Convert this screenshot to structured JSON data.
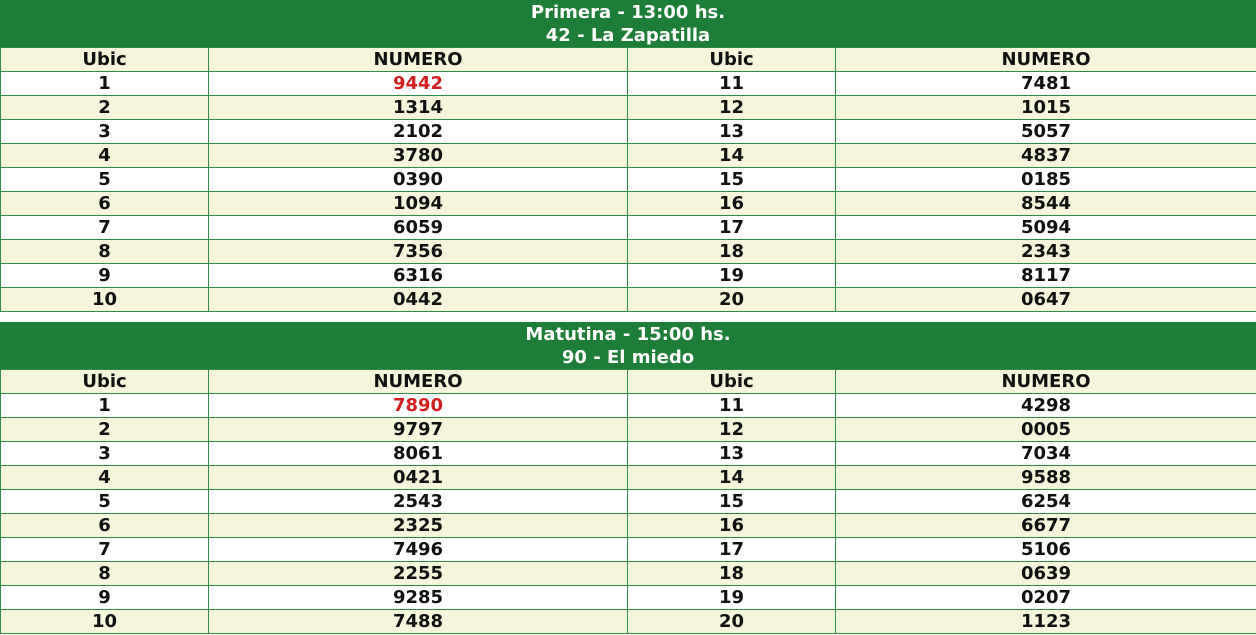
{
  "colors": {
    "header_bg": "#1e7d37",
    "row_alt_bg": "#f5f5dc",
    "first_prize": "#d11e1e"
  },
  "draws": [
    {
      "title": "Primera - 13:00 hs.",
      "subtitle": "42 - La Zapatilla",
      "col_ubic": "Ubic",
      "col_numero": "NUMERO",
      "rows": [
        {
          "u1": "1",
          "n1": "9442",
          "u2": "11",
          "n2": "7481"
        },
        {
          "u1": "2",
          "n1": "1314",
          "u2": "12",
          "n2": "1015"
        },
        {
          "u1": "3",
          "n1": "2102",
          "u2": "13",
          "n2": "5057"
        },
        {
          "u1": "4",
          "n1": "3780",
          "u2": "14",
          "n2": "4837"
        },
        {
          "u1": "5",
          "n1": "0390",
          "u2": "15",
          "n2": "0185"
        },
        {
          "u1": "6",
          "n1": "1094",
          "u2": "16",
          "n2": "8544"
        },
        {
          "u1": "7",
          "n1": "6059",
          "u2": "17",
          "n2": "5094"
        },
        {
          "u1": "8",
          "n1": "7356",
          "u2": "18",
          "n2": "2343"
        },
        {
          "u1": "9",
          "n1": "6316",
          "u2": "19",
          "n2": "8117"
        },
        {
          "u1": "10",
          "n1": "0442",
          "u2": "20",
          "n2": "0647"
        }
      ]
    },
    {
      "title": "Matutina - 15:00 hs.",
      "subtitle": "90 - El miedo",
      "col_ubic": "Ubic",
      "col_numero": "NUMERO",
      "rows": [
        {
          "u1": "1",
          "n1": "7890",
          "u2": "11",
          "n2": "4298"
        },
        {
          "u1": "2",
          "n1": "9797",
          "u2": "12",
          "n2": "0005"
        },
        {
          "u1": "3",
          "n1": "8061",
          "u2": "13",
          "n2": "7034"
        },
        {
          "u1": "4",
          "n1": "0421",
          "u2": "14",
          "n2": "9588"
        },
        {
          "u1": "5",
          "n1": "2543",
          "u2": "15",
          "n2": "6254"
        },
        {
          "u1": "6",
          "n1": "2325",
          "u2": "16",
          "n2": "6677"
        },
        {
          "u1": "7",
          "n1": "7496",
          "u2": "17",
          "n2": "5106"
        },
        {
          "u1": "8",
          "n1": "2255",
          "u2": "18",
          "n2": "0639"
        },
        {
          "u1": "9",
          "n1": "9285",
          "u2": "19",
          "n2": "0207"
        },
        {
          "u1": "10",
          "n1": "7488",
          "u2": "20",
          "n2": "1123"
        }
      ]
    }
  ]
}
